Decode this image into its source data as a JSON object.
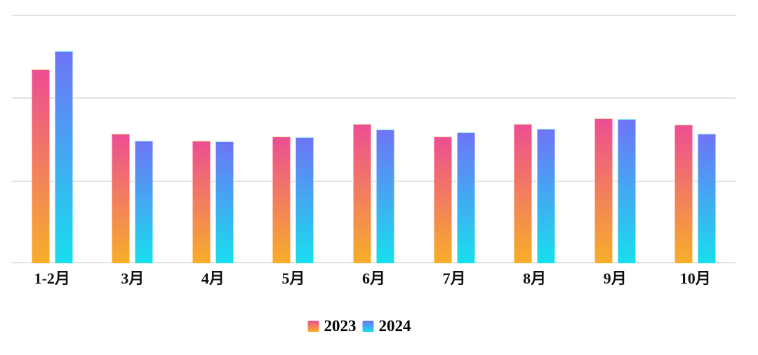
{
  "chart_data": {
    "type": "bar",
    "title": "",
    "xlabel": "",
    "ylabel": "",
    "categories": [
      "1-2月",
      "3月",
      "4月",
      "5月",
      "6月",
      "7月",
      "8月",
      "9月",
      "10月"
    ],
    "series": [
      {
        "name": "2023",
        "values": [
          2.34,
          1.56,
          1.48,
          1.53,
          1.68,
          1.53,
          1.68,
          1.75,
          1.67
        ],
        "gradient_top": "#ED4E93",
        "gradient_bottom": "#F7AE29"
      },
      {
        "name": "2024",
        "values": [
          2.56,
          1.48,
          1.47,
          1.52,
          1.61,
          1.58,
          1.62,
          1.74,
          1.56
        ],
        "gradient_top": "#6E74F6",
        "gradient_bottom": "#17DFED"
      }
    ],
    "ylim": [
      0,
      3
    ],
    "gridline_values": [
      0,
      1,
      2,
      3
    ],
    "y_tick_labels_visible": false,
    "grid_on": true,
    "grid_color": "#E2E2E2",
    "legend_position": "bottom",
    "axis_label_color": "#111111"
  }
}
